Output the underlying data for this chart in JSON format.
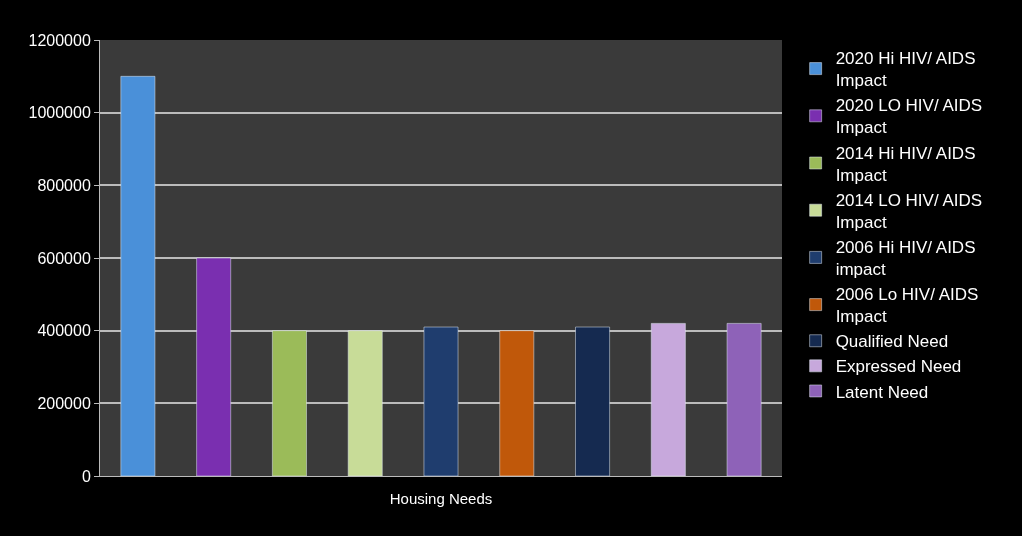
{
  "chart_data": {
    "type": "bar",
    "xlabel": "Housing Needs",
    "categories": [
      null,
      null,
      null,
      null,
      null,
      null,
      null,
      null,
      null
    ],
    "series": [
      {
        "name": "2020 Hi HIV/ AIDS Impact",
        "color": "#4a90d9",
        "values": [
          1100000,
          null,
          null,
          null,
          null,
          null,
          null,
          null,
          null
        ]
      },
      {
        "name": "2020 LO HIV/ AIDS Impact",
        "color": "#7a2fb0",
        "values": [
          null,
          600000,
          null,
          null,
          null,
          null,
          null,
          null,
          null
        ]
      },
      {
        "name": "2014 Hi HIV/ AIDS Impact",
        "color": "#9bbb59",
        "values": [
          null,
          null,
          400000,
          null,
          null,
          null,
          null,
          null,
          null
        ]
      },
      {
        "name": "2014 LO HIV/ AIDS Impact",
        "color": "#c8dc98",
        "values": [
          null,
          null,
          null,
          400000,
          null,
          null,
          null,
          null,
          null
        ]
      },
      {
        "name": "2006 Hi HIV/ AIDS impact",
        "color": "#1f3d6e",
        "values": [
          null,
          null,
          null,
          null,
          410000,
          null,
          null,
          null,
          null
        ]
      },
      {
        "name": "2006 Lo HIV/ AIDS Impact",
        "color": "#c0580a",
        "values": [
          null,
          null,
          null,
          null,
          null,
          400000,
          null,
          null,
          null
        ]
      },
      {
        "name": "Qualified Need",
        "color": "#152a50",
        "values": [
          null,
          null,
          null,
          null,
          null,
          null,
          410000,
          null,
          null
        ]
      },
      {
        "name": "Expressed Need",
        "color": "#c7a8dc",
        "values": [
          null,
          null,
          null,
          null,
          null,
          null,
          null,
          420000,
          null
        ]
      },
      {
        "name": "Latent Need",
        "color": "#8e62b8",
        "values": [
          null,
          null,
          null,
          null,
          null,
          null,
          null,
          null,
          420000
        ]
      }
    ],
    "ylim": [
      0,
      1200000
    ],
    "yticks": [
      0,
      200000,
      400000,
      600000,
      800000,
      1000000,
      1200000
    ],
    "grid": "y",
    "legend": "right",
    "tick_labels": "y"
  }
}
